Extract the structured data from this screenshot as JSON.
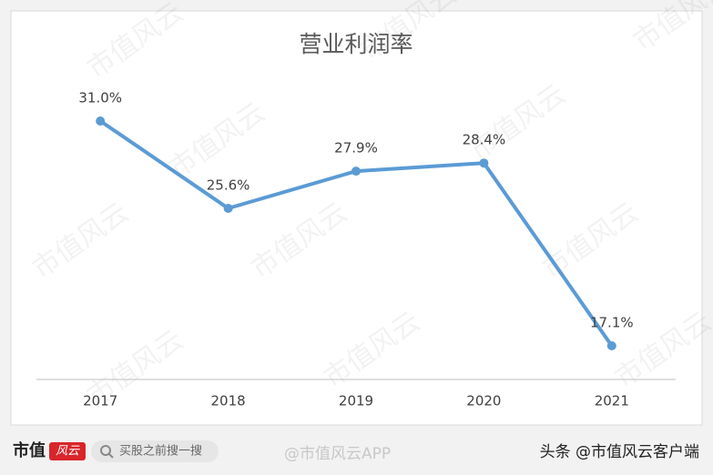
{
  "chart_data": {
    "type": "line",
    "title": "营业利润率",
    "categories": [
      "2017",
      "2018",
      "2019",
      "2020",
      "2021"
    ],
    "values": [
      31.0,
      25.6,
      27.9,
      28.4,
      17.1
    ],
    "value_labels": [
      "31.0%",
      "25.6%",
      "27.9%",
      "28.4%",
      "17.1%"
    ],
    "color": "#5b9bd5",
    "grid": false
  },
  "watermark": "市值风云",
  "footer": {
    "logo": "市值",
    "logo_tag": "风云",
    "search": "买股之前搜一搜",
    "weibo": "@市值风云APP",
    "source": "头条 @市值风云客户端"
  }
}
